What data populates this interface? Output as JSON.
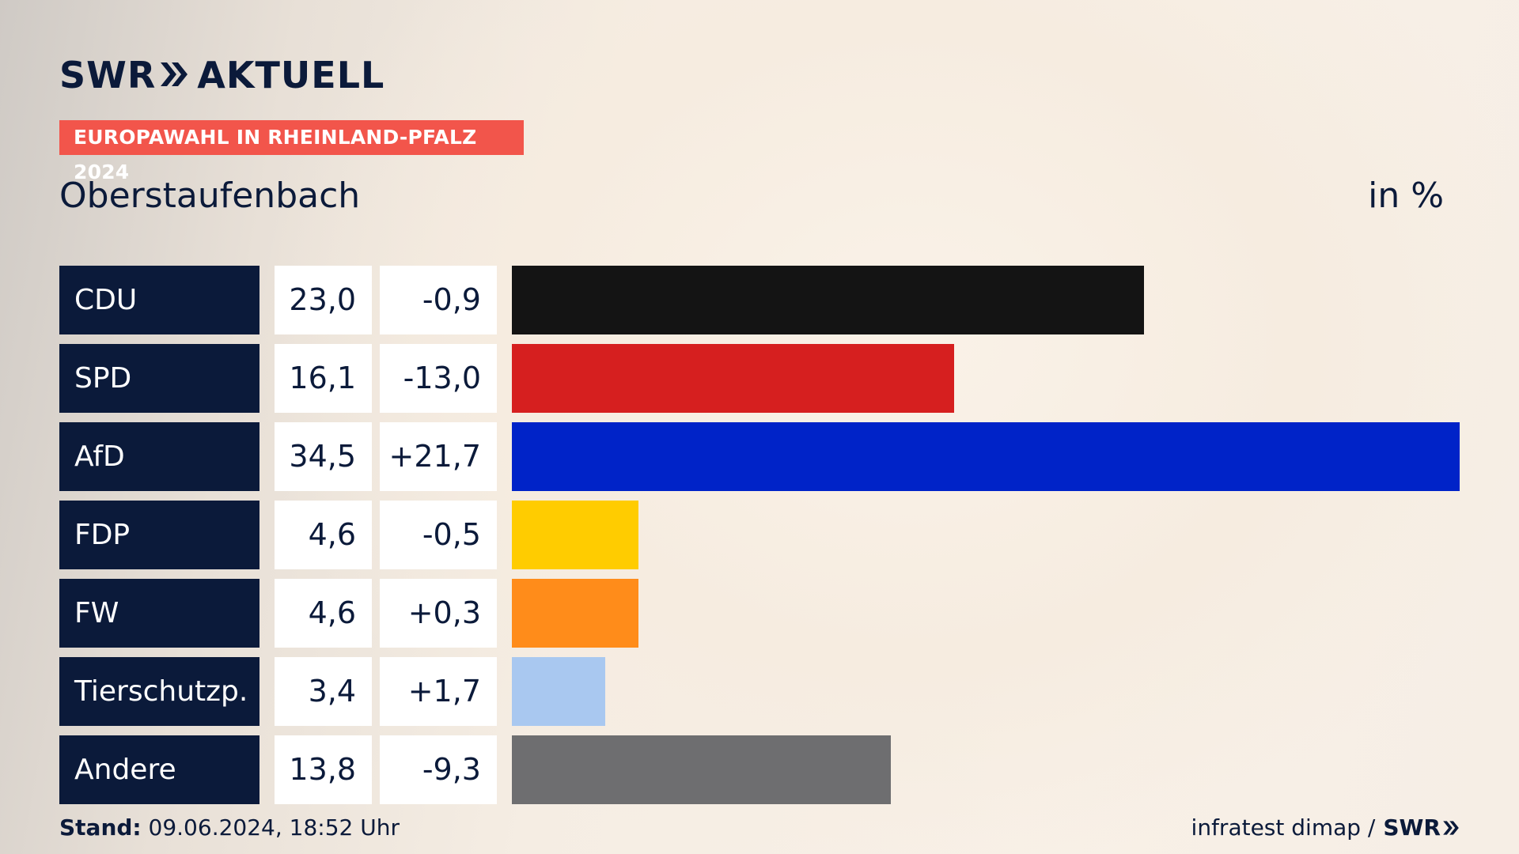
{
  "header": {
    "brand_left": "SWR",
    "brand_right": "AKTUELL",
    "badge": "EUROPAWAHL IN RHEINLAND-PFALZ 2024",
    "place": "Oberstaufenbach",
    "unit": "in %"
  },
  "chart_data": {
    "type": "bar",
    "orientation": "horizontal",
    "categories": [
      "CDU",
      "SPD",
      "AfD",
      "FDP",
      "FW",
      "Tierschutzp.",
      "Andere"
    ],
    "values": [
      23.0,
      16.1,
      34.5,
      4.6,
      4.6,
      3.4,
      13.8
    ],
    "value_labels": [
      "23,0",
      "16,1",
      "34,5",
      "4,6",
      "4,6",
      "3,4",
      "13,8"
    ],
    "changes": [
      "-0,9",
      "-13,0",
      "+21,7",
      "-0,5",
      "+0,3",
      "+1,7",
      "-9,3"
    ],
    "colors": [
      "#141414",
      "#d61f1f",
      "#0023c8",
      "#ffcc00",
      "#ff8c1a",
      "#a9c8f0",
      "#6e6e70"
    ],
    "xlim": [
      0,
      34.5
    ],
    "title": "Oberstaufenbach",
    "unit": "in %"
  },
  "footer": {
    "stand_label": "Stand:",
    "stand_value": "09.06.2024, 18:52 Uhr",
    "source": "infratest dimap /",
    "source_brand": "SWR"
  }
}
